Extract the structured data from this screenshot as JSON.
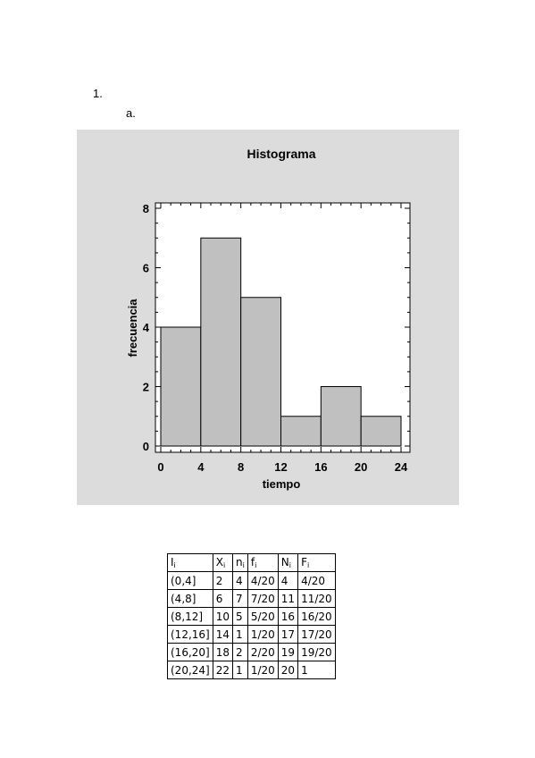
{
  "doc": {
    "item_number": "1.",
    "sub_item": "a."
  },
  "chart_data": {
    "type": "bar",
    "title": "Histograma",
    "xlabel": "tiempo",
    "ylabel": "frecuencia",
    "bins": [
      [
        0,
        4
      ],
      [
        4,
        8
      ],
      [
        8,
        12
      ],
      [
        12,
        16
      ],
      [
        16,
        20
      ],
      [
        20,
        24
      ]
    ],
    "values": [
      4,
      7,
      5,
      1,
      2,
      1
    ],
    "xlim": [
      0,
      24
    ],
    "ylim": [
      0,
      8
    ],
    "xticks": [
      "0",
      "4",
      "8",
      "12",
      "16",
      "20",
      "24"
    ],
    "yticks": [
      "0",
      "2",
      "4",
      "6",
      "8"
    ],
    "colors": {
      "bar": "#c0c0c0",
      "panel": "#dcdcdc",
      "plot": "#ffffff"
    }
  },
  "table": {
    "headers": [
      {
        "main": "I",
        "sub": "i"
      },
      {
        "main": "X",
        "sub": "i"
      },
      {
        "main": "n",
        "sub": "i"
      },
      {
        "main": "f",
        "sub": "i"
      },
      {
        "main": "N",
        "sub": "i"
      },
      {
        "main": "F",
        "sub": "i"
      }
    ],
    "rows": [
      [
        "(0,4]",
        "2",
        "4",
        "4/20",
        "4",
        "4/20"
      ],
      [
        "(4,8]",
        "6",
        "7",
        "7/20",
        "11",
        "11/20"
      ],
      [
        "(8,12]",
        "10",
        "5",
        "5/20",
        "16",
        "16/20"
      ],
      [
        "(12,16]",
        "14",
        "1",
        "1/20",
        "17",
        "17/20"
      ],
      [
        "(16,20]",
        "18",
        "2",
        "2/20",
        "19",
        "19/20"
      ],
      [
        "(20,24]",
        "22",
        "1",
        "1/20",
        "20",
        "1"
      ]
    ]
  }
}
